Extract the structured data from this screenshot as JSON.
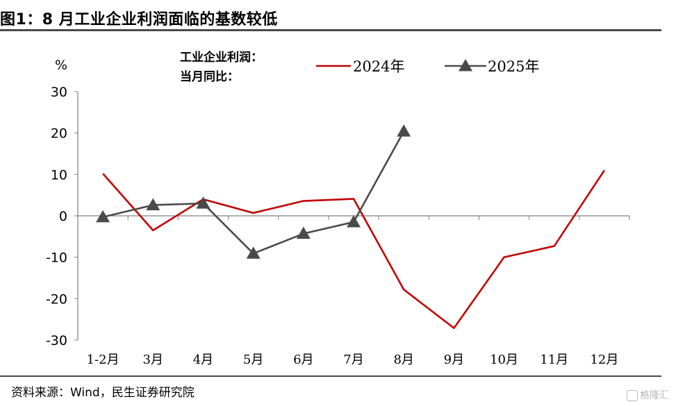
{
  "header": {
    "title": "图1：8 月工业企业利润面临的基数较低"
  },
  "footer": {
    "source": "资料来源：Wind，民生证券研究院",
    "watermark": "格隆汇"
  },
  "chart_data": {
    "type": "line",
    "unit_label": "%",
    "legend_title_line1": "工业企业利润：",
    "legend_title_line2": "当月同比：",
    "categories": [
      "1-2月",
      "3月",
      "4月",
      "5月",
      "6月",
      "7月",
      "8月",
      "9月",
      "10月",
      "11月",
      "12月"
    ],
    "y_ticks": [
      "30",
      "20",
      "10",
      "0",
      "-10",
      "-20",
      "-30"
    ],
    "ylim": [
      -30,
      30
    ],
    "grid": false,
    "legend_position": "top",
    "series": [
      {
        "name": "2024年",
        "color": "#c00000",
        "marker": "none",
        "values": [
          10.2,
          -3.5,
          4.0,
          0.7,
          3.6,
          4.1,
          -17.8,
          -27.1,
          -10.0,
          -7.3,
          11.0
        ]
      },
      {
        "name": "2025年",
        "color": "#4a4a4a",
        "marker": "triangle",
        "values": [
          -0.3,
          2.6,
          3.0,
          -9.1,
          -4.3,
          -1.5,
          20.4,
          null,
          null,
          null,
          null
        ]
      }
    ]
  }
}
